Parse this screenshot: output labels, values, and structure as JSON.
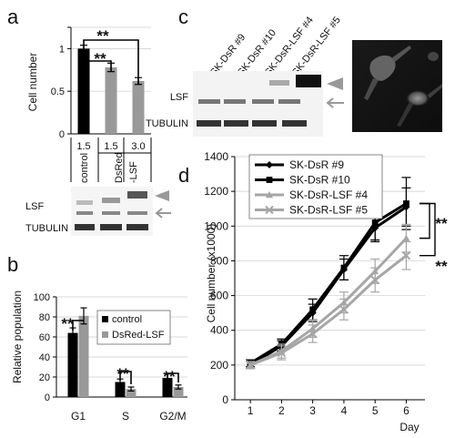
{
  "panel_labels": {
    "a": "a",
    "b": "b",
    "c": "c",
    "d": "d"
  },
  "blot_labels": {
    "a_lsf": "LSF",
    "a_tubulin": "TUBULIN",
    "c_lsf": "LSF",
    "c_tubulin": "TUBULIN"
  },
  "significance": "**",
  "colors": {
    "black": "#000000",
    "gray": "#999999",
    "lightgray": "#b3b3b3"
  },
  "chart_data": [
    {
      "id": "a",
      "type": "bar",
      "ylabel": "Cell number",
      "ylim": [
        0,
        1.25
      ],
      "yticks": [
        0,
        0.5,
        1,
        1.5
      ],
      "ytick_labels": [
        "0",
        "0.5",
        "1",
        ""
      ],
      "categories": [
        "control",
        "DsRed -LSF",
        "DsRed -LSF"
      ],
      "category_text": {
        "control": "control",
        "dsred_line1": "DsRed",
        "dsred_line2": "-LSF"
      },
      "doses": [
        "1.5",
        "1.5",
        "3.0"
      ],
      "values": [
        1.0,
        0.78,
        0.62
      ],
      "errors": [
        0.04,
        0.05,
        0.04
      ],
      "bar_colors": [
        "#000000",
        "#999999",
        "#999999"
      ],
      "significance": [
        [
          "control",
          "1.5"
        ],
        [
          "control",
          "3.0"
        ]
      ]
    },
    {
      "id": "b",
      "type": "bar",
      "ylabel": "Relative population",
      "ylim": [
        0,
        100
      ],
      "yticks": [
        0,
        20,
        40,
        60,
        80,
        100
      ],
      "categories": [
        "G1",
        "S",
        "G2/M"
      ],
      "legend_position": "top-right",
      "series": [
        {
          "name": "control",
          "color": "#000000",
          "values": [
            64,
            15,
            19
          ],
          "errors": [
            5,
            3,
            4
          ]
        },
        {
          "name": "DsRed-LSF",
          "color": "#999999",
          "values": [
            81,
            8,
            10
          ],
          "errors": [
            8,
            2,
            2
          ]
        }
      ]
    },
    {
      "id": "c",
      "type": "blot",
      "lanes": [
        "SK-DsR #9",
        "SK-DsR #10",
        "SK-DsR-LSF #4",
        "SK-DsR-LSF #5"
      ]
    },
    {
      "id": "d",
      "type": "line",
      "ylabel": "Cell number (x1000)",
      "xlabel": "Day",
      "x": [
        1,
        2,
        3,
        4,
        5,
        6
      ],
      "xlim": [
        0.5,
        6.6
      ],
      "ylim": [
        0,
        1400
      ],
      "yticks": [
        0,
        200,
        400,
        600,
        800,
        1000,
        1200,
        1400
      ],
      "legend_position": "top-left",
      "series": [
        {
          "name": "SK-DsR #9",
          "color": "#000000",
          "marker": "diamond",
          "values": [
            200,
            310,
            500,
            750,
            990,
            1110
          ],
          "errors": [
            20,
            30,
            50,
            60,
            80,
            110
          ]
        },
        {
          "name": "SK-DsR #10",
          "color": "#000000",
          "marker": "square",
          "values": [
            210,
            320,
            520,
            760,
            1020,
            1130
          ],
          "errors": [
            20,
            30,
            60,
            70,
            100,
            150
          ]
        },
        {
          "name": "SK-DsR-LSF #4",
          "color": "#a6a6a6",
          "marker": "triangle",
          "values": [
            200,
            280,
            410,
            560,
            740,
            930
          ],
          "errors": [
            20,
            40,
            50,
            60,
            70,
            80
          ]
        },
        {
          "name": "SK-DsR-LSF #5",
          "color": "#a6a6a6",
          "marker": "cross",
          "values": [
            200,
            270,
            380,
            520,
            690,
            830
          ],
          "errors": [
            20,
            40,
            50,
            60,
            70,
            80
          ]
        }
      ],
      "significance": [
        [
          "SK-DsR #10",
          "SK-DsR-LSF #4"
        ],
        [
          "SK-DsR #10",
          "SK-DsR-LSF #5"
        ]
      ]
    }
  ]
}
